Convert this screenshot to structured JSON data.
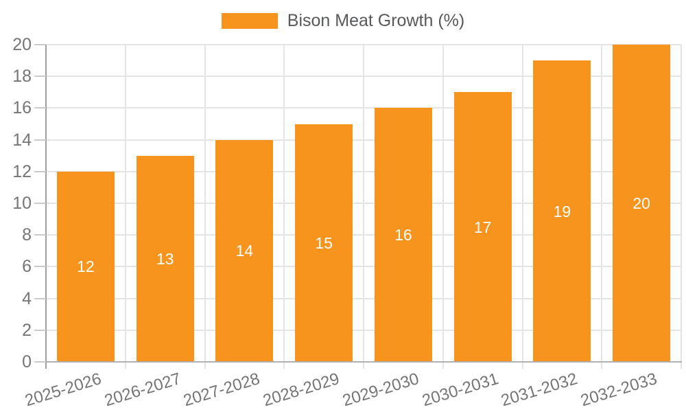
{
  "chart_data": {
    "type": "bar",
    "title": "",
    "legend_label": "Bison Meat Growth (%)",
    "legend_position": "top-center",
    "categories": [
      "2025-2026",
      "2026-2027",
      "2027-2028",
      "2028-2029",
      "2029-2030",
      "2030-2031",
      "2031-2032",
      "2032-2033"
    ],
    "values": [
      12,
      13,
      14,
      15,
      16,
      17,
      19,
      20
    ],
    "bar_labels": [
      "12",
      "13",
      "14",
      "15",
      "16",
      "17",
      "19",
      "20"
    ],
    "xlabel": "",
    "ylabel": "",
    "ylim": [
      0,
      20
    ],
    "ytick_step": 2,
    "ytick_labels": [
      "0",
      "2",
      "4",
      "6",
      "8",
      "10",
      "12",
      "14",
      "16",
      "18",
      "20"
    ],
    "grid": true,
    "colors": {
      "bar": "#f7941e",
      "bar_label": "#ffffff",
      "grid_line": "#e4e4e4",
      "axis_y_line": "#9e9e9e",
      "axis_x_line": "#b0b0b0",
      "tick_mark": "#cacaca",
      "tick_label": "#757575",
      "legend_text": "#58595b",
      "background": "#ffffff"
    }
  }
}
